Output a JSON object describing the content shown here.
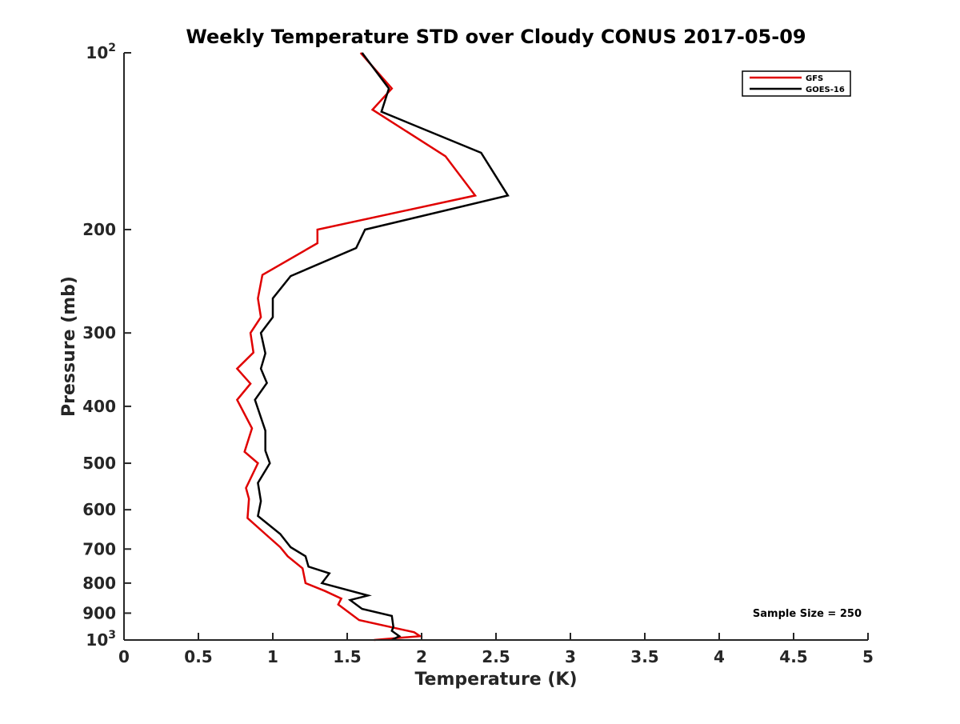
{
  "chart_data": {
    "type": "line",
    "title": "Weekly Temperature STD over Cloudy CONUS 2017-05-09",
    "xlabel": "Temperature (K)",
    "ylabel": "Pressure (mb)",
    "xlim": [
      0,
      5
    ],
    "ylim": [
      100,
      1000
    ],
    "y_scale": "log",
    "y_reversed": true,
    "grid": false,
    "legend_placement": "top-right",
    "x_ticks": [
      {
        "value": 0,
        "label": "0"
      },
      {
        "value": 0.5,
        "label": "0.5"
      },
      {
        "value": 1,
        "label": "1"
      },
      {
        "value": 1.5,
        "label": "1.5"
      },
      {
        "value": 2,
        "label": "2"
      },
      {
        "value": 2.5,
        "label": "2.5"
      },
      {
        "value": 3,
        "label": "3"
      },
      {
        "value": 3.5,
        "label": "3.5"
      },
      {
        "value": 4,
        "label": "4"
      },
      {
        "value": 4.5,
        "label": "4.5"
      },
      {
        "value": 5,
        "label": "5"
      }
    ],
    "y_ticks": [
      {
        "value": 100,
        "base": "10",
        "exp": "2"
      },
      {
        "value": 200,
        "label": "200"
      },
      {
        "value": 300,
        "label": "300"
      },
      {
        "value": 400,
        "label": "400"
      },
      {
        "value": 500,
        "label": "500"
      },
      {
        "value": 600,
        "label": "600"
      },
      {
        "value": 700,
        "label": "700"
      },
      {
        "value": 800,
        "label": "800"
      },
      {
        "value": 900,
        "label": "900"
      },
      {
        "value": 1000,
        "base": "10",
        "exp": "3"
      }
    ],
    "annotation": "Sample Size = 250",
    "series": [
      {
        "name": "GFS",
        "color": "#e00000",
        "points": [
          [
            1.59,
            100
          ],
          [
            1.8,
            115
          ],
          [
            1.67,
            125
          ],
          [
            2.16,
            150
          ],
          [
            2.36,
            175
          ],
          [
            1.3,
            200
          ],
          [
            1.3,
            211
          ],
          [
            0.93,
            239
          ],
          [
            0.9,
            262
          ],
          [
            0.92,
            282
          ],
          [
            0.85,
            300
          ],
          [
            0.87,
            324
          ],
          [
            0.76,
            345
          ],
          [
            0.85,
            366
          ],
          [
            0.76,
            390
          ],
          [
            0.86,
            436
          ],
          [
            0.81,
            478
          ],
          [
            0.9,
            500
          ],
          [
            0.82,
            551
          ],
          [
            0.84,
            575
          ],
          [
            0.83,
            620
          ],
          [
            0.95,
            660
          ],
          [
            1.05,
            695
          ],
          [
            1.1,
            720
          ],
          [
            1.2,
            755
          ],
          [
            1.22,
            800
          ],
          [
            1.35,
            825
          ],
          [
            1.46,
            850
          ],
          [
            1.44,
            870
          ],
          [
            1.58,
            925
          ],
          [
            1.95,
            970
          ],
          [
            1.99,
            985
          ],
          [
            1.68,
            1000
          ]
        ]
      },
      {
        "name": "GOES-16",
        "color": "#000000",
        "points": [
          [
            1.6,
            100
          ],
          [
            1.78,
            115
          ],
          [
            1.73,
            126
          ],
          [
            2.4,
            148
          ],
          [
            2.58,
            175
          ],
          [
            1.62,
            200
          ],
          [
            1.56,
            215
          ],
          [
            1.12,
            240
          ],
          [
            1.0,
            262
          ],
          [
            1.0,
            282
          ],
          [
            0.92,
            300
          ],
          [
            0.95,
            325
          ],
          [
            0.92,
            345
          ],
          [
            0.96,
            365
          ],
          [
            0.88,
            390
          ],
          [
            0.95,
            440
          ],
          [
            0.95,
            476
          ],
          [
            0.98,
            500
          ],
          [
            0.9,
            540
          ],
          [
            0.92,
            580
          ],
          [
            0.9,
            615
          ],
          [
            1.05,
            660
          ],
          [
            1.12,
            695
          ],
          [
            1.22,
            720
          ],
          [
            1.24,
            750
          ],
          [
            1.38,
            770
          ],
          [
            1.33,
            800
          ],
          [
            1.64,
            840
          ],
          [
            1.52,
            855
          ],
          [
            1.6,
            885
          ],
          [
            1.8,
            910
          ],
          [
            1.81,
            950
          ],
          [
            1.8,
            965
          ],
          [
            1.85,
            985
          ],
          [
            1.8,
            1000
          ]
        ]
      }
    ]
  }
}
